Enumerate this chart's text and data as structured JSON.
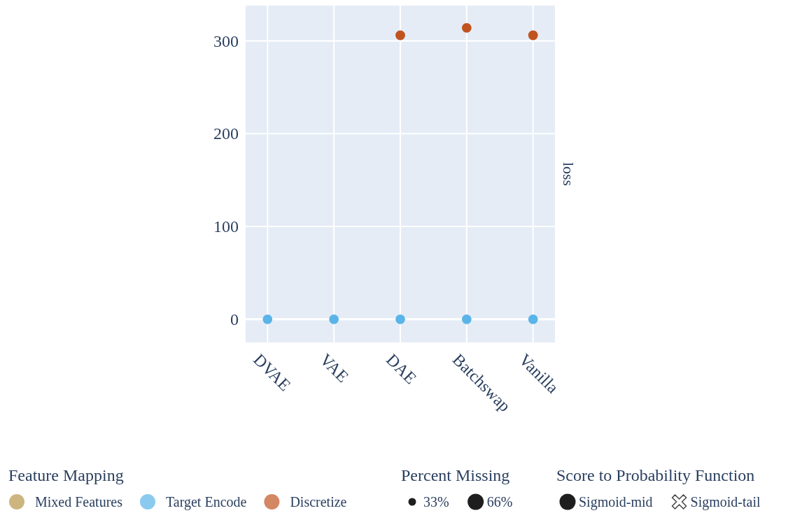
{
  "chart_data": {
    "type": "scatter",
    "categories": [
      "DVAE",
      "VAE",
      "DAE",
      "Batchswap",
      "Vanilla"
    ],
    "ylabel": "loss",
    "ylim": [
      -25,
      338
    ],
    "yticks": [
      0,
      100,
      200,
      300
    ],
    "grid": true,
    "legend": "bottom",
    "legend_title": "Feature Mapping",
    "marker": "circle",
    "series": [
      {
        "name": "Mixed Features",
        "color": "#b8964a",
        "values": [
          null,
          null,
          null,
          null,
          null
        ]
      },
      {
        "name": "Target Encode",
        "color": "#5ab4e8",
        "values": [
          0,
          0,
          0,
          0,
          0
        ]
      },
      {
        "name": "Discretize",
        "color": "#c0541f",
        "values": [
          null,
          null,
          306,
          314,
          306
        ]
      }
    ],
    "annotations": [
      "Percent Missing",
      "33%",
      "66%",
      "Score to Probability Function",
      "Sigmoid-mid",
      "Sigmoid-tail"
    ]
  }
}
